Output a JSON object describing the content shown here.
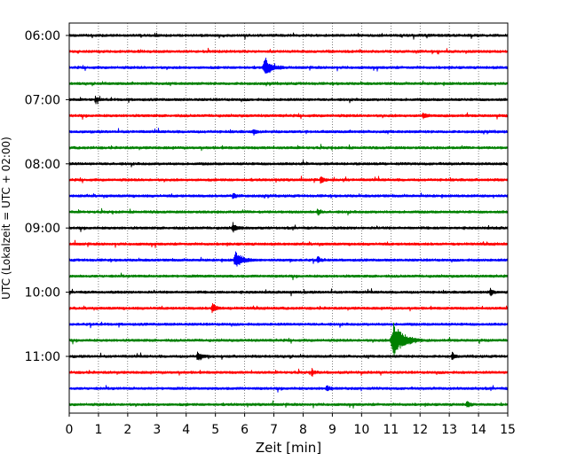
{
  "chart_data": {
    "type": "line",
    "title": "",
    "xlabel": "Zeit  [min]",
    "ylabel": "UTC (Lokalzeit = UTC + 02:00)",
    "xlim": [
      0,
      15
    ],
    "x_ticks": [
      "0",
      "1",
      "2",
      "3",
      "4",
      "5",
      "6",
      "7",
      "8",
      "9",
      "10",
      "11",
      "12",
      "13",
      "14",
      "15"
    ],
    "y_ticks": [
      {
        "label": "06:00",
        "trace": 0
      },
      {
        "label": "07:00",
        "trace": 4
      },
      {
        "label": "08:00",
        "trace": 8
      },
      {
        "label": "09:00",
        "trace": 12
      },
      {
        "label": "10:00",
        "trace": 16
      },
      {
        "label": "11:00",
        "trace": 20
      }
    ],
    "grid": "vertical dotted",
    "trace_interval_minutes": 15,
    "trace_colors": [
      "#000000",
      "#ff0000",
      "#0000ff",
      "#008000"
    ],
    "traces": [
      {
        "start": "06:00",
        "events": []
      },
      {
        "start": "06:15",
        "events": []
      },
      {
        "start": "06:30",
        "events": [
          {
            "minute": 6.7,
            "amplitude": "large"
          }
        ]
      },
      {
        "start": "06:45",
        "events": []
      },
      {
        "start": "07:00",
        "events": [
          {
            "minute": 0.9,
            "amplitude": "small"
          }
        ]
      },
      {
        "start": "07:15",
        "events": [
          {
            "minute": 12.1,
            "amplitude": "small"
          }
        ]
      },
      {
        "start": "07:30",
        "events": [
          {
            "minute": 6.3,
            "amplitude": "small"
          }
        ]
      },
      {
        "start": "07:45",
        "events": []
      },
      {
        "start": "08:00",
        "events": []
      },
      {
        "start": "08:15",
        "events": [
          {
            "minute": 8.6,
            "amplitude": "small"
          }
        ]
      },
      {
        "start": "08:30",
        "events": [
          {
            "minute": 5.6,
            "amplitude": "small"
          }
        ]
      },
      {
        "start": "08:45",
        "events": [
          {
            "minute": 8.5,
            "amplitude": "small"
          }
        ]
      },
      {
        "start": "09:00",
        "events": [
          {
            "minute": 5.6,
            "amplitude": "medium"
          }
        ]
      },
      {
        "start": "09:15",
        "events": []
      },
      {
        "start": "09:30",
        "events": [
          {
            "minute": 5.7,
            "amplitude": "large"
          },
          {
            "minute": 8.5,
            "amplitude": "small"
          }
        ]
      },
      {
        "start": "09:45",
        "events": []
      },
      {
        "start": "10:00",
        "events": [
          {
            "minute": 14.4,
            "amplitude": "small"
          }
        ]
      },
      {
        "start": "10:15",
        "events": [
          {
            "minute": 4.9,
            "amplitude": "medium"
          }
        ]
      },
      {
        "start": "10:30",
        "events": []
      },
      {
        "start": "10:45",
        "events": [
          {
            "minute": 11.1,
            "amplitude": "very large"
          }
        ]
      },
      {
        "start": "11:00",
        "events": [
          {
            "minute": 4.4,
            "amplitude": "medium"
          },
          {
            "minute": 13.1,
            "amplitude": "small"
          }
        ]
      },
      {
        "start": "11:15",
        "events": [
          {
            "minute": 8.3,
            "amplitude": "small"
          }
        ]
      },
      {
        "start": "11:30",
        "events": [
          {
            "minute": 8.8,
            "amplitude": "small"
          }
        ]
      },
      {
        "start": "11:45",
        "events": [
          {
            "minute": 13.6,
            "amplitude": "small"
          }
        ]
      }
    ]
  }
}
